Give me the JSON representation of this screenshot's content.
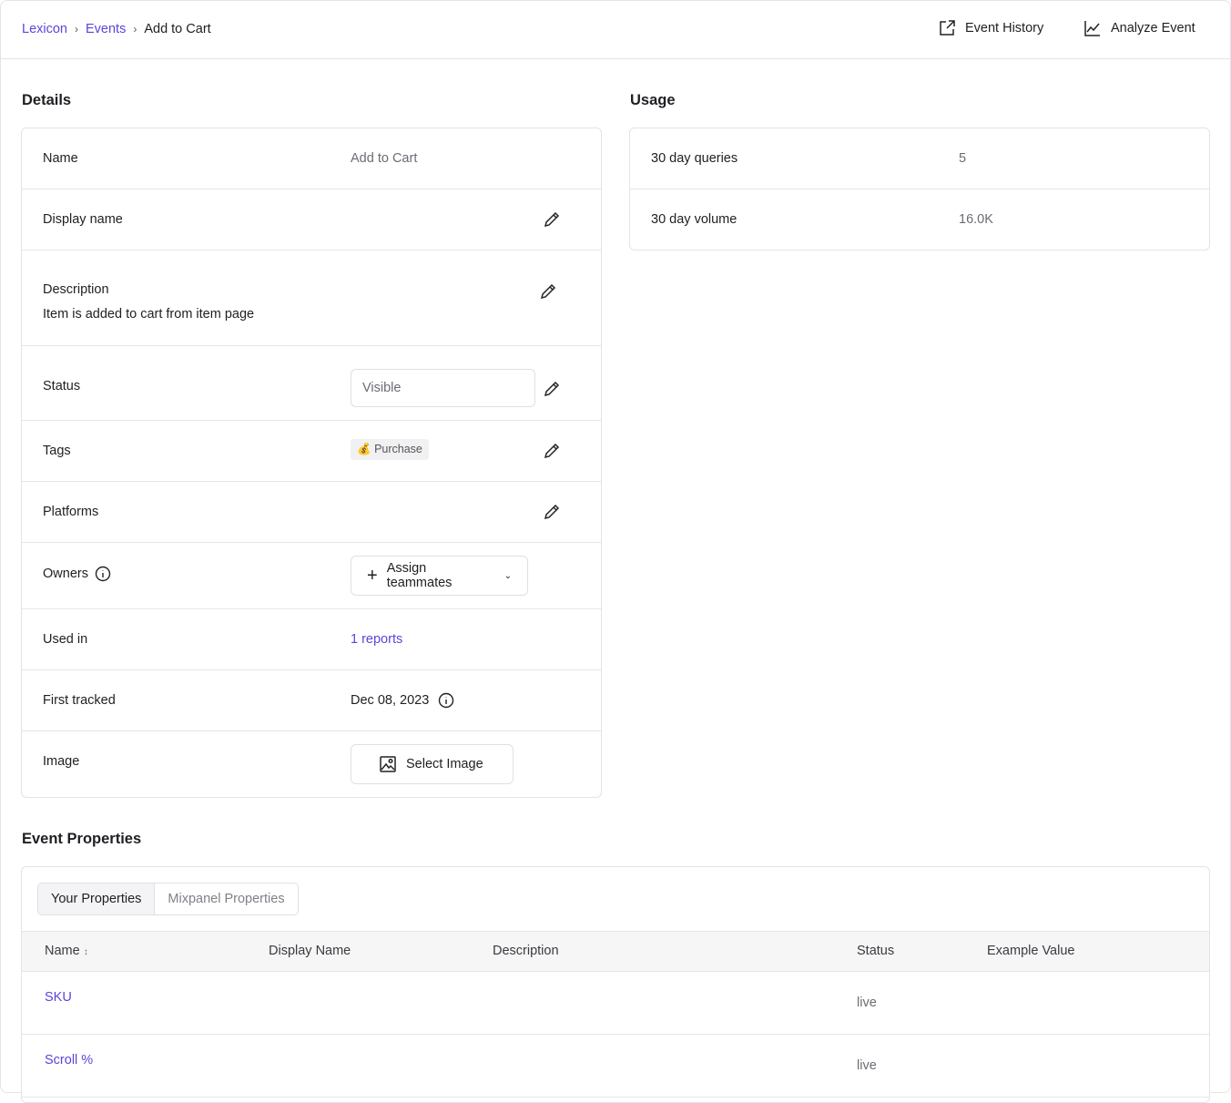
{
  "breadcrumb": [
    "Lexicon",
    "Events",
    "Add to Cart"
  ],
  "actions": {
    "history": "Event History",
    "analyze": "Analyze Event"
  },
  "details": {
    "title": "Details",
    "name": {
      "label": "Name",
      "value": "Add to Cart"
    },
    "display_name": {
      "label": "Display name"
    },
    "description": {
      "label": "Description",
      "value": "Item is added to cart from item page"
    },
    "status": {
      "label": "Status",
      "value": "Visible"
    },
    "tags": {
      "label": "Tags",
      "value": "Purchase",
      "emoji": "💰"
    },
    "platforms": {
      "label": "Platforms"
    },
    "owners": {
      "label": "Owners",
      "button": "Assign teammates"
    },
    "used_in": {
      "label": "Used in",
      "value": "1 reports"
    },
    "first_tracked": {
      "label": "First tracked",
      "value": "Dec 08, 2023"
    },
    "image": {
      "label": "Image",
      "button": "Select Image"
    }
  },
  "usage": {
    "title": "Usage",
    "rows": [
      {
        "label": "30 day queries",
        "value": "5"
      },
      {
        "label": "30 day volume",
        "value": "16.0K"
      }
    ]
  },
  "properties": {
    "title": "Event Properties",
    "tabs": [
      "Your Properties",
      "Mixpanel Properties"
    ],
    "columns": [
      "Name",
      "Display Name",
      "Description",
      "Status",
      "Example Value"
    ],
    "rows": [
      {
        "name": "SKU",
        "status": "live"
      },
      {
        "name": "Scroll %",
        "status": "live"
      }
    ]
  },
  "colors": {
    "accent": "#5b46d8"
  }
}
